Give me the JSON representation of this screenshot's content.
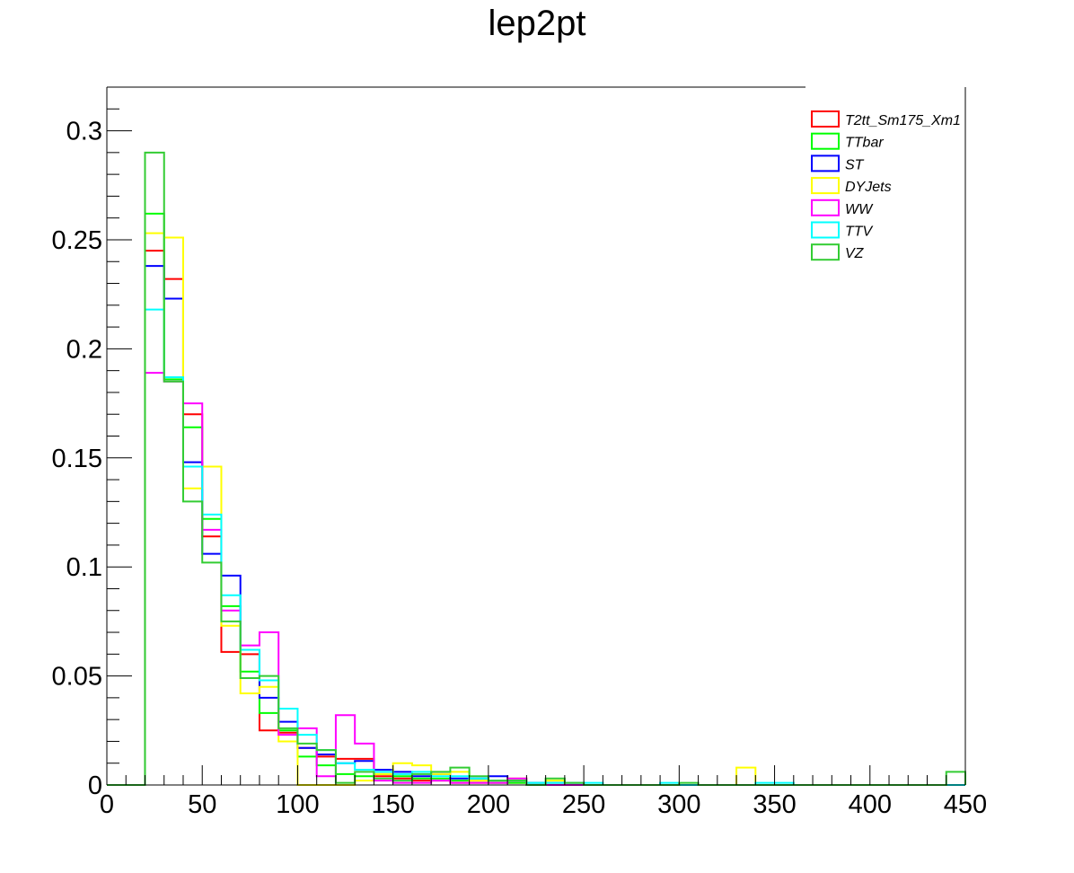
{
  "chart_data": {
    "type": "histogram",
    "title": "lep2pt",
    "xlabel": "",
    "ylabel": "",
    "xlim": [
      0,
      450
    ],
    "ylim": [
      0,
      0.32
    ],
    "bin_width": 10,
    "x_bin_edges": [
      0,
      10,
      20,
      30,
      40,
      50,
      60,
      70,
      80,
      90,
      100,
      110,
      120,
      130,
      140,
      150,
      160,
      170,
      180,
      190,
      200,
      210,
      220,
      230,
      240,
      250,
      260,
      270,
      280,
      290,
      300,
      310,
      320,
      330,
      340,
      350,
      360,
      370,
      380,
      390,
      400,
      410,
      420,
      430,
      440,
      450
    ],
    "x_tick_labels": [
      "0",
      "50",
      "100",
      "150",
      "200",
      "250",
      "300",
      "350",
      "400",
      "450"
    ],
    "y_tick_labels": [
      "0",
      "0.05",
      "0.1",
      "0.15",
      "0.2",
      "0.25",
      "0.3"
    ],
    "legend_position": "top-right",
    "series": [
      {
        "name": "T2tt_Sm175_Xm1",
        "color": "#ff0000",
        "values": [
          0,
          0,
          0.245,
          0.232,
          0.17,
          0.114,
          0.061,
          0.06,
          0.025,
          0.024,
          0.017,
          0.013,
          0.012,
          0.012,
          0.004,
          0.003,
          0.002,
          0.002,
          0.001,
          0.001,
          0.001,
          0.001,
          0,
          0,
          0,
          0,
          0,
          0,
          0,
          0,
          0,
          0,
          0,
          0,
          0,
          0,
          0,
          0,
          0,
          0,
          0,
          0,
          0,
          0,
          0
        ]
      },
      {
        "name": "TTbar",
        "color": "#00ff00",
        "values": [
          0,
          0,
          0.262,
          0.186,
          0.164,
          0.122,
          0.082,
          0.052,
          0.033,
          0.025,
          0.013,
          0.009,
          0.005,
          0.004,
          0.005,
          0.004,
          0.003,
          0.003,
          0.002,
          0.002,
          0.001,
          0.001,
          0.001,
          0,
          0,
          0,
          0,
          0,
          0,
          0,
          0,
          0,
          0,
          0,
          0,
          0,
          0,
          0,
          0,
          0,
          0,
          0,
          0,
          0,
          0
        ]
      },
      {
        "name": "ST",
        "color": "#0000ff",
        "values": [
          0,
          0,
          0.238,
          0.223,
          0.148,
          0.106,
          0.096,
          0.062,
          0.04,
          0.029,
          0.017,
          0.014,
          0.01,
          0.011,
          0.007,
          0.006,
          0.004,
          0.005,
          0.003,
          0.003,
          0.004,
          0.002,
          0.001,
          0.001,
          0.001,
          0,
          0,
          0,
          0,
          0,
          0,
          0,
          0,
          0,
          0,
          0,
          0,
          0,
          0,
          0,
          0,
          0,
          0,
          0,
          0
        ]
      },
      {
        "name": "DYJets",
        "color": "#ffff00",
        "values": [
          0,
          0,
          0.253,
          0.251,
          0.136,
          0.146,
          0.073,
          0.042,
          0.045,
          0.02,
          0,
          0,
          0,
          0.002,
          0.005,
          0.01,
          0.009,
          0.005,
          0.006,
          0.002,
          0.002,
          0.003,
          0,
          0.002,
          0,
          0,
          0,
          0,
          0,
          0,
          0,
          0,
          0,
          0.008,
          0,
          0,
          0,
          0,
          0,
          0,
          0,
          0,
          0,
          0,
          0
        ]
      },
      {
        "name": "WW",
        "color": "#ff00ff",
        "values": [
          0,
          0,
          0.189,
          0.185,
          0.175,
          0.117,
          0.08,
          0.064,
          0.07,
          0.023,
          0.026,
          0.004,
          0.032,
          0.019,
          0.002,
          0.001,
          0.001,
          0.002,
          0.001,
          0.001,
          0.001,
          0.003,
          0,
          0,
          0,
          0,
          0,
          0,
          0,
          0,
          0,
          0,
          0,
          0,
          0,
          0,
          0,
          0,
          0,
          0,
          0,
          0,
          0,
          0,
          0
        ]
      },
      {
        "name": "TTV",
        "color": "#00ffff",
        "values": [
          0,
          0,
          0.218,
          0.187,
          0.146,
          0.124,
          0.087,
          0.062,
          0.048,
          0.035,
          0.023,
          0.016,
          0.01,
          0.007,
          0.006,
          0.005,
          0.006,
          0.004,
          0.004,
          0.003,
          0.002,
          0.002,
          0.001,
          0.001,
          0.001,
          0.001,
          0,
          0,
          0,
          0.001,
          0,
          0,
          0,
          0,
          0.001,
          0.001,
          0,
          0,
          0,
          0,
          0,
          0,
          0,
          0,
          0
        ]
      },
      {
        "name": "VZ",
        "color": "#33cc33",
        "values": [
          0,
          0,
          0.29,
          0.185,
          0.13,
          0.102,
          0.075,
          0.049,
          0.05,
          0.026,
          0.019,
          0.016,
          0.001,
          0.006,
          0.003,
          0.002,
          0.005,
          0.006,
          0.008,
          0.004,
          0.002,
          0.002,
          0,
          0.003,
          0.001,
          0,
          0,
          0,
          0,
          0,
          0.001,
          0,
          0,
          0,
          0,
          0,
          0,
          0,
          0,
          0,
          0,
          0,
          0,
          0,
          0.006
        ]
      }
    ]
  }
}
